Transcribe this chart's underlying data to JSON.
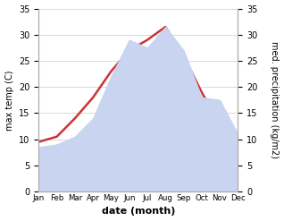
{
  "months": [
    "Jan",
    "Feb",
    "Mar",
    "Apr",
    "May",
    "Jun",
    "Jul",
    "Aug",
    "Sep",
    "Oct",
    "Nov",
    "Dec"
  ],
  "temp": [
    9.5,
    10.5,
    14.0,
    18.0,
    23.0,
    27.0,
    29.0,
    31.5,
    26.0,
    19.0,
    13.0,
    10.0
  ],
  "precip": [
    8.5,
    9.0,
    10.5,
    14.0,
    22.0,
    29.0,
    27.5,
    31.5,
    27.0,
    18.0,
    17.5,
    11.0
  ],
  "temp_color": "#cc3333",
  "precip_fill_color": "#c8d4f0",
  "temp_ylim": [
    0,
    35
  ],
  "precip_ylim": [
    0,
    35
  ],
  "ylabel_left": "max temp (C)",
  "ylabel_right": "med. precipitation (kg/m2)",
  "xlabel": "date (month)",
  "bg_color": "#ffffff",
  "spine_color": "#aaaaaa",
  "tick_fontsize": 7,
  "label_fontsize": 7,
  "xlabel_fontsize": 8
}
